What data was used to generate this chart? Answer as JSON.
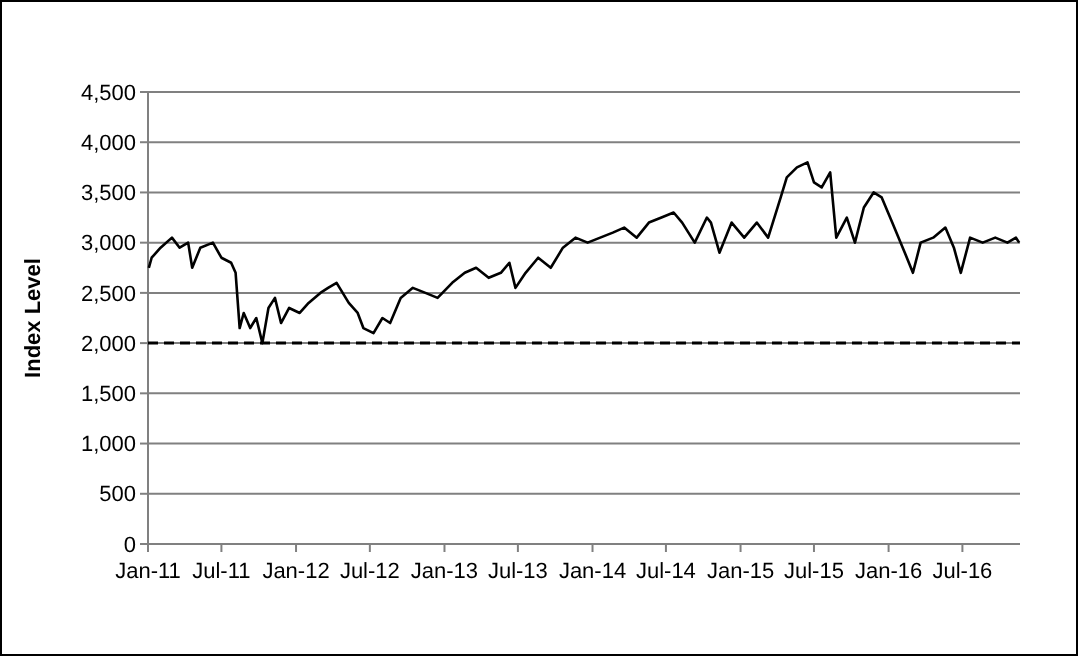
{
  "chart_data": {
    "type": "line",
    "ylabel": "Index Level",
    "ylim": [
      0,
      4500
    ],
    "yticks": [
      {
        "value": 0,
        "label": "0"
      },
      {
        "value": 500,
        "label": "500"
      },
      {
        "value": 1000,
        "label": "1,000"
      },
      {
        "value": 1500,
        "label": "1,500"
      },
      {
        "value": 2000,
        "label": "2,000"
      },
      {
        "value": 2500,
        "label": "2,500"
      },
      {
        "value": 3000,
        "label": "3,000"
      },
      {
        "value": 3500,
        "label": "3,500"
      },
      {
        "value": 4000,
        "label": "4,000"
      },
      {
        "value": 4500,
        "label": "4,500"
      }
    ],
    "xlim": [
      "2011-01-01",
      "2016-11-20"
    ],
    "xticks": [
      {
        "value": "2011-01-01",
        "label": "Jan-11"
      },
      {
        "value": "2011-07-01",
        "label": "Jul-11"
      },
      {
        "value": "2012-01-01",
        "label": "Jan-12"
      },
      {
        "value": "2012-07-01",
        "label": "Jul-12"
      },
      {
        "value": "2013-01-01",
        "label": "Jan-13"
      },
      {
        "value": "2013-07-01",
        "label": "Jul-13"
      },
      {
        "value": "2014-01-01",
        "label": "Jan-14"
      },
      {
        "value": "2014-07-01",
        "label": "Jul-14"
      },
      {
        "value": "2015-01-01",
        "label": "Jan-15"
      },
      {
        "value": "2015-07-01",
        "label": "Jul-15"
      },
      {
        "value": "2016-01-01",
        "label": "Jan-16"
      },
      {
        "value": "2016-07-01",
        "label": "Jul-16"
      }
    ],
    "grid": "y",
    "marker": "none",
    "line_style": "solid",
    "ref_lines": [
      {
        "axis": "y",
        "value": 2000,
        "color": "#000000",
        "line_style": "dashed"
      }
    ],
    "series": [
      {
        "color": "#000000",
        "x": [
          "2011-01-03",
          "2011-01-10",
          "2011-02-01",
          "2011-03-01",
          "2011-03-20",
          "2011-04-10",
          "2011-04-20",
          "2011-05-10",
          "2011-06-10",
          "2011-07-01",
          "2011-07-25",
          "2011-08-05",
          "2011-08-15",
          "2011-08-25",
          "2011-09-10",
          "2011-09-25",
          "2011-10-10",
          "2011-10-25",
          "2011-11-10",
          "2011-11-25",
          "2011-12-15",
          "2012-01-10",
          "2012-02-01",
          "2012-03-01",
          "2012-03-20",
          "2012-04-10",
          "2012-05-10",
          "2012-06-01",
          "2012-06-15",
          "2012-07-10",
          "2012-08-01",
          "2012-08-20",
          "2012-09-15",
          "2012-10-15",
          "2012-11-15",
          "2012-12-15",
          "2013-01-20",
          "2013-02-20",
          "2013-03-20",
          "2013-04-20",
          "2013-05-20",
          "2013-06-10",
          "2013-06-25",
          "2013-07-20",
          "2013-08-20",
          "2013-09-20",
          "2013-10-20",
          "2013-11-20",
          "2013-12-20",
          "2014-01-20",
          "2014-02-20",
          "2014-03-20",
          "2014-04-20",
          "2014-05-20",
          "2014-06-20",
          "2014-07-20",
          "2014-08-10",
          "2014-09-10",
          "2014-10-10",
          "2014-10-20",
          "2014-11-10",
          "2014-12-10",
          "2015-01-10",
          "2015-02-10",
          "2015-03-10",
          "2015-04-10",
          "2015-04-25",
          "2015-05-20",
          "2015-06-15",
          "2015-07-01",
          "2015-07-20",
          "2015-08-10",
          "2015-08-25",
          "2015-09-20",
          "2015-10-10",
          "2015-11-01",
          "2015-11-25",
          "2015-12-15",
          "2016-01-10",
          "2016-02-10",
          "2016-03-01",
          "2016-03-20",
          "2016-04-20",
          "2016-05-20",
          "2016-06-10",
          "2016-06-27",
          "2016-07-20",
          "2016-08-20",
          "2016-09-20",
          "2016-10-20",
          "2016-11-10",
          "2016-11-18"
        ],
        "values": [
          2750,
          2850,
          2950,
          3050,
          2950,
          3000,
          2750,
          2950,
          3000,
          2850,
          2800,
          2700,
          2150,
          2300,
          2150,
          2250,
          2000,
          2350,
          2450,
          2200,
          2350,
          2300,
          2400,
          2500,
          2550,
          2600,
          2400,
          2300,
          2150,
          2100,
          2250,
          2200,
          2450,
          2550,
          2500,
          2450,
          2600,
          2700,
          2750,
          2650,
          2700,
          2800,
          2550,
          2700,
          2850,
          2750,
          2950,
          3050,
          3000,
          3050,
          3100,
          3150,
          3050,
          3200,
          3250,
          3300,
          3200,
          3000,
          3250,
          3200,
          2900,
          3200,
          3050,
          3200,
          3050,
          3450,
          3650,
          3750,
          3800,
          3600,
          3550,
          3700,
          3050,
          3250,
          3000,
          3350,
          3500,
          3450,
          3200,
          2900,
          2700,
          3000,
          3050,
          3150,
          2950,
          2700,
          3050,
          3000,
          3050,
          3000,
          3050,
          3000
        ]
      }
    ]
  }
}
